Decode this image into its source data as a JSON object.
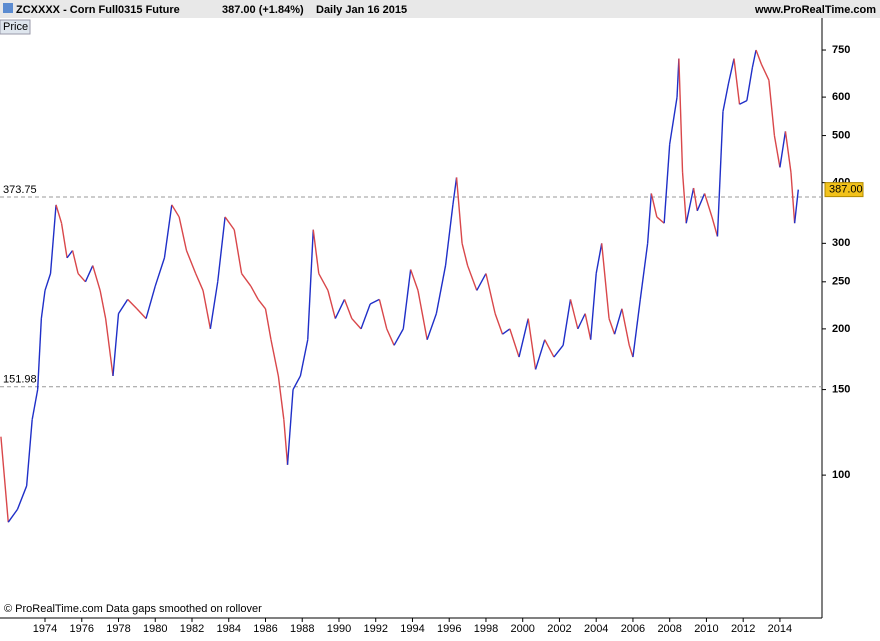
{
  "header": {
    "symbol": "ZCXXXX - Corn Full0315 Future",
    "quote": "387.00 (+1.84%)",
    "period": "Daily  Jan 16 2015",
    "site": "www.ProRealTime.com"
  },
  "panel_label": "Price",
  "footer": "© ProRealTime.com  Data gaps smoothed on rollover",
  "chart_data": {
    "type": "line",
    "log_scale": true,
    "up_color": "#1f2fc8",
    "down_color": "#d9474a",
    "x": [
      1971.6,
      1972.0,
      1972.5,
      1973.0,
      1973.3,
      1973.6,
      1973.8,
      1974.0,
      1974.3,
      1974.6,
      1974.9,
      1975.2,
      1975.5,
      1975.8,
      1976.2,
      1976.6,
      1977.0,
      1977.3,
      1977.7,
      1978.0,
      1978.5,
      1979.0,
      1979.5,
      1980.0,
      1980.5,
      1980.9,
      1981.3,
      1981.7,
      1982.2,
      1982.6,
      1983.0,
      1983.4,
      1983.8,
      1984.3,
      1984.7,
      1985.2,
      1985.6,
      1986.0,
      1986.3,
      1986.7,
      1987.0,
      1987.2,
      1987.5,
      1987.9,
      1988.3,
      1988.6,
      1988.9,
      1989.4,
      1989.8,
      1990.3,
      1990.7,
      1991.2,
      1991.7,
      1992.2,
      1992.6,
      1993.0,
      1993.5,
      1993.9,
      1994.3,
      1994.8,
      1995.3,
      1995.8,
      1996.2,
      1996.4,
      1996.7,
      1997.0,
      1997.5,
      1998.0,
      1998.5,
      1998.9,
      1999.3,
      1999.8,
      2000.3,
      2000.7,
      2001.2,
      2001.7,
      2002.2,
      2002.6,
      2003.0,
      2003.4,
      2003.7,
      2004.0,
      2004.3,
      2004.7,
      2005.0,
      2005.4,
      2005.8,
      2006.0,
      2006.4,
      2006.8,
      2007.0,
      2007.3,
      2007.7,
      2008.0,
      2008.4,
      2008.5,
      2008.7,
      2008.9,
      2009.3,
      2009.5,
      2009.9,
      2010.3,
      2010.6,
      2010.9,
      2011.2,
      2011.5,
      2011.8,
      2012.2,
      2012.5,
      2012.7,
      2013.0,
      2013.4,
      2013.7,
      2014.0,
      2014.3,
      2014.6,
      2014.8,
      2015.0
    ],
    "series": [
      {
        "values": [
          120,
          80,
          85,
          95,
          130,
          150,
          210,
          240,
          260,
          360,
          330,
          280,
          290,
          260,
          250,
          270,
          240,
          210,
          160,
          215,
          230,
          220,
          210,
          245,
          280,
          360,
          340,
          290,
          260,
          240,
          200,
          250,
          340,
          320,
          260,
          245,
          230,
          220,
          190,
          160,
          130,
          105,
          150,
          160,
          190,
          320,
          260,
          240,
          210,
          230,
          210,
          200,
          225,
          230,
          200,
          185,
          200,
          265,
          240,
          190,
          215,
          270,
          360,
          410,
          300,
          270,
          240,
          260,
          215,
          195,
          200,
          175,
          210,
          165,
          190,
          175,
          185,
          230,
          200,
          215,
          190,
          260,
          300,
          210,
          195,
          220,
          185,
          175,
          230,
          300,
          380,
          340,
          330,
          480,
          600,
          720,
          420,
          330,
          390,
          350,
          380,
          340,
          310,
          560,
          640,
          720,
          580,
          590,
          690,
          750,
          700,
          650,
          500,
          430,
          510,
          420,
          330,
          387
        ]
      }
    ],
    "xlim": [
      1971.55,
      2016.29
    ],
    "ylim": [
      50.8,
      794
    ],
    "xticks": [
      1974,
      1976,
      1978,
      1980,
      1982,
      1984,
      1986,
      1988,
      1990,
      1992,
      1994,
      1996,
      1998,
      2000,
      2002,
      2004,
      2006,
      2008,
      2010,
      2012,
      2014
    ],
    "yticks": [
      100,
      150,
      200,
      250,
      300,
      400,
      500,
      600,
      750
    ],
    "reference_lines": [
      {
        "value": 373.75,
        "label": "373.75"
      },
      {
        "value": 151.98,
        "label": "151.98"
      }
    ],
    "last_price": {
      "value": 387,
      "label": "387.00"
    }
  }
}
